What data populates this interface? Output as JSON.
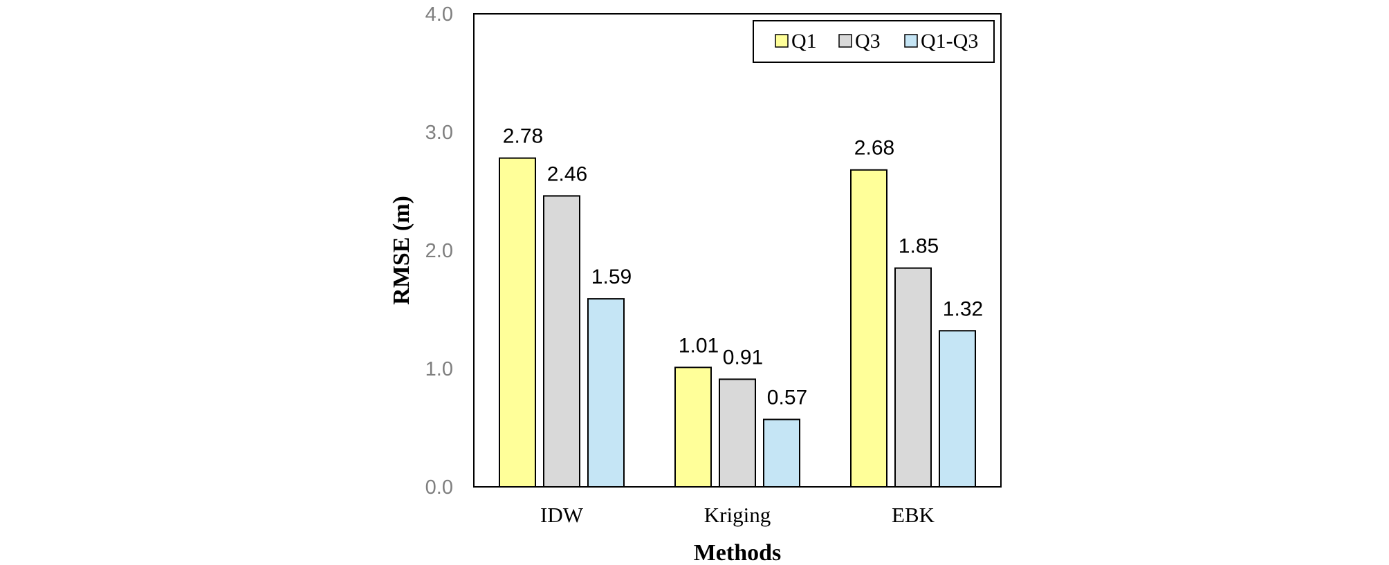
{
  "chart_data": {
    "type": "bar",
    "categories": [
      "IDW",
      "Kriging",
      "EBK"
    ],
    "series": [
      {
        "name": "Q1",
        "values": [
          2.78,
          1.01,
          2.68
        ],
        "labels": [
          "2.78",
          "1.01",
          "2.68"
        ],
        "color": "#ffff99"
      },
      {
        "name": "Q3",
        "values": [
          2.46,
          0.91,
          1.85
        ],
        "labels": [
          "2.46",
          "0.91",
          "1.85"
        ],
        "color": "#d9d9d9"
      },
      {
        "name": "Q1-Q3",
        "values": [
          1.59,
          0.57,
          1.32
        ],
        "labels": [
          "1.59",
          "0.57",
          "1.32"
        ],
        "color": "#c5e5f5"
      }
    ],
    "xlabel": "Methods",
    "ylabel": "RMSE (m)",
    "ylim": [
      0,
      4
    ],
    "yticks": [
      "0.0",
      "1.0",
      "2.0",
      "3.0",
      "4.0"
    ],
    "grid": false,
    "legend_position": "top-right"
  }
}
